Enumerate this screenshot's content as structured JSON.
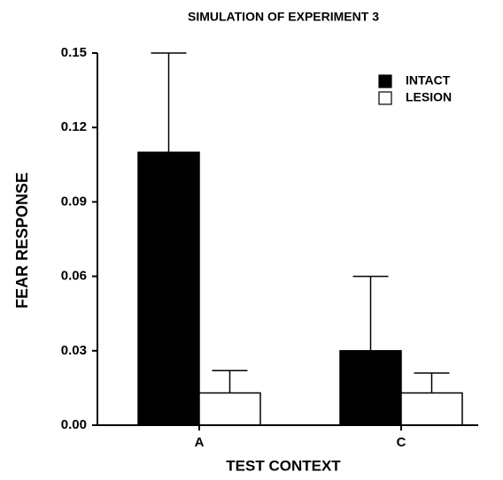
{
  "chart_data": {
    "type": "bar",
    "title": "SIMULATION OF EXPERIMENT 3",
    "xlabel": "TEST CONTEXT",
    "ylabel": "FEAR RESPONSE",
    "categories": [
      "A",
      "C"
    ],
    "series": [
      {
        "name": "INTACT",
        "color": "#000000",
        "values": [
          0.11,
          0.03
        ],
        "errors": [
          0.04,
          0.03
        ]
      },
      {
        "name": "LESION",
        "color": "#ffffff",
        "values": [
          0.013,
          0.013
        ],
        "errors": [
          0.009,
          0.008
        ]
      }
    ],
    "ylim": [
      0,
      0.15
    ],
    "yticks": [
      {
        "value": 0,
        "label": "0.00"
      },
      0.03,
      0.06,
      0.09,
      0.12,
      0.15
    ],
    "legend": "upper right"
  }
}
